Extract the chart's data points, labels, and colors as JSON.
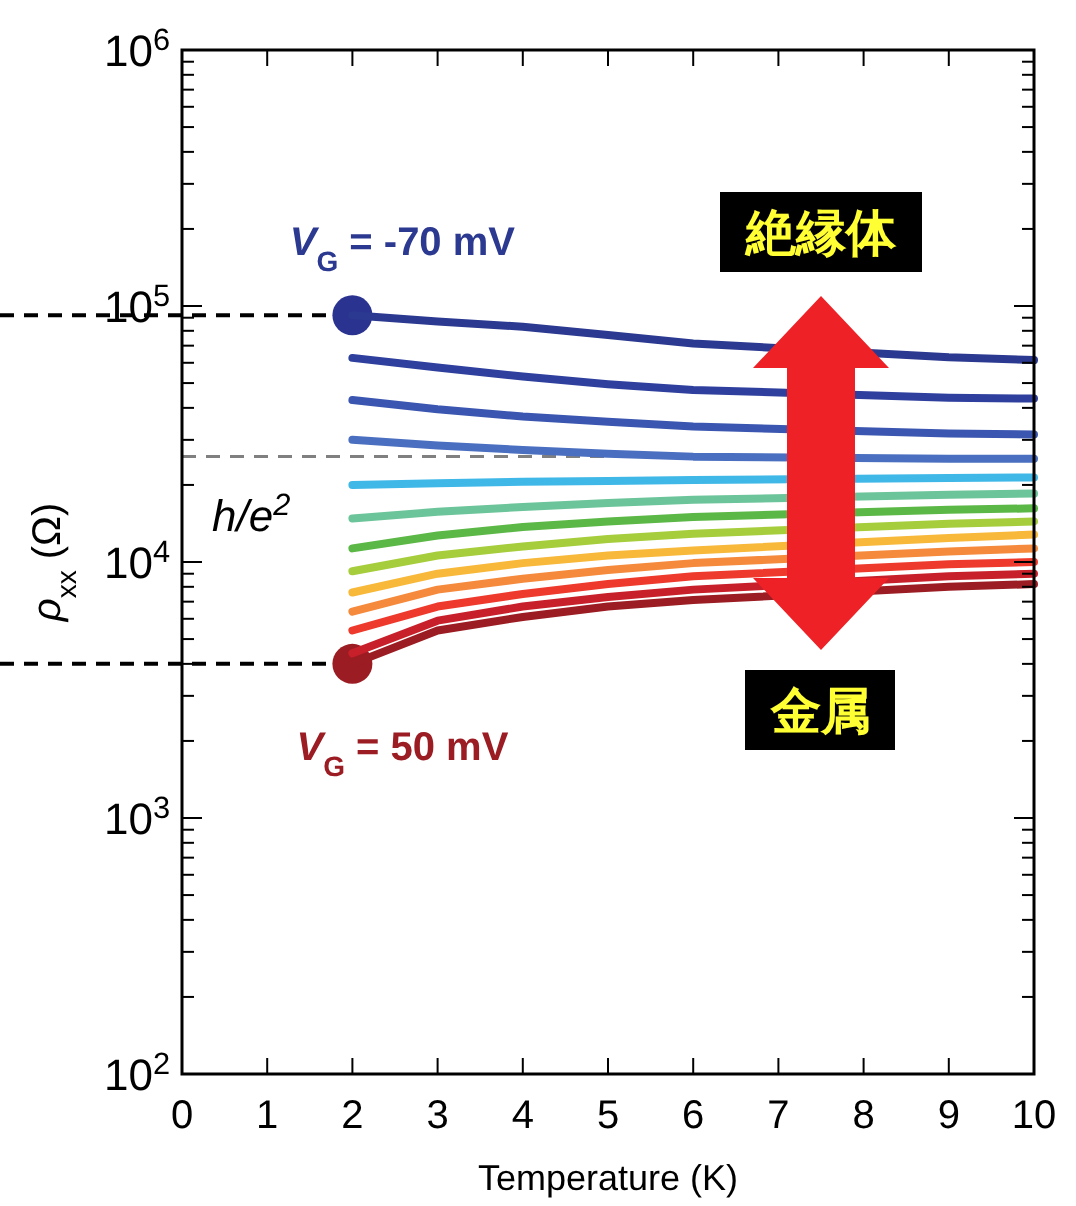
{
  "chart_data": {
    "type": "line",
    "xlabel": "Temperature (K)",
    "ylabel": "ρ$_{xx}$ (Ω)",
    "x": [
      2,
      3,
      4,
      5,
      6,
      9,
      10
    ],
    "xlim": [
      0,
      10
    ],
    "xticks": [
      0,
      1,
      2,
      3,
      4,
      5,
      6,
      7,
      8,
      9,
      10
    ],
    "log": true,
    "ylim": [
      100,
      1000000
    ],
    "yticks": [
      {
        "value": 100,
        "label": "10$^{2}$"
      },
      {
        "value": 1000,
        "label": "10$^{3}$"
      },
      {
        "value": 10000,
        "label": "10$^{4}$"
      },
      {
        "value": 100000,
        "label": "10$^{5}$"
      },
      {
        "value": 1000000,
        "label": "10$^{6}$"
      }
    ],
    "grid": false,
    "series": [
      {
        "type": "scatter",
        "x": [
          2
        ],
        "color": "#2b3390",
        "values": [
          92000
        ]
      },
      {
        "type": "scatter",
        "x": [
          2
        ],
        "color": "#9b1c22",
        "values": [
          4000
        ]
      },
      {
        "name": "V$_{G}$ = -70 mV",
        "color": "#2b3990",
        "values": [
          92000,
          87000,
          83000,
          77000,
          71400,
          63000,
          61500
        ]
      },
      {
        "color": "#2e3f9e",
        "values": [
          62700,
          57500,
          53000,
          49500,
          47000,
          43800,
          43500
        ]
      },
      {
        "color": "#3a56b0",
        "values": [
          42900,
          39500,
          37000,
          35300,
          33800,
          31800,
          31500
        ]
      },
      {
        "color": "#4a6fc0",
        "values": [
          30000,
          28500,
          27400,
          26500,
          25800,
          25300,
          25300
        ]
      },
      {
        "color": "#3fb8e8",
        "values": [
          20000,
          20300,
          20600,
          20700,
          20900,
          21300,
          21400
        ]
      },
      {
        "color": "#6cc59a",
        "values": [
          14800,
          15700,
          16400,
          17000,
          17500,
          18300,
          18500
        ]
      },
      {
        "color": "#5cb846",
        "values": [
          11300,
          12700,
          13700,
          14400,
          15000,
          16000,
          16200
        ]
      },
      {
        "color": "#a6cd3c",
        "values": [
          9200,
          10600,
          11500,
          12300,
          12900,
          14100,
          14400
        ]
      },
      {
        "color": "#f8b83a",
        "values": [
          7600,
          9000,
          9900,
          10600,
          11100,
          12400,
          12800
        ]
      },
      {
        "color": "#f58a3c",
        "values": [
          6400,
          7800,
          8600,
          9300,
          9900,
          11000,
          11300
        ]
      },
      {
        "color": "#ee3a2c",
        "values": [
          5400,
          6700,
          7500,
          8200,
          8800,
          9800,
          10000
        ]
      },
      {
        "color": "#c8202a",
        "values": [
          4400,
          5900,
          6700,
          7300,
          7800,
          8800,
          9000
        ]
      },
      {
        "name": "V$_{G}$ = 50 mV",
        "color": "#9b1c22",
        "values": [
          4000,
          5400,
          6100,
          6700,
          7100,
          8000,
          8200
        ]
      }
    ],
    "ref_lines": [
      {
        "axis": "y",
        "value": 25813,
        "label": "h/e$^{2}$",
        "color": "#808080",
        "line_style": "dashed"
      },
      {
        "axis": "y",
        "value": 92000,
        "color": "#000000",
        "line_style": "dashed"
      },
      {
        "axis": "y",
        "value": 4000,
        "color": "#000000",
        "line_style": "dashed"
      }
    ],
    "annotations": [
      "絶縁体",
      "金属"
    ]
  }
}
